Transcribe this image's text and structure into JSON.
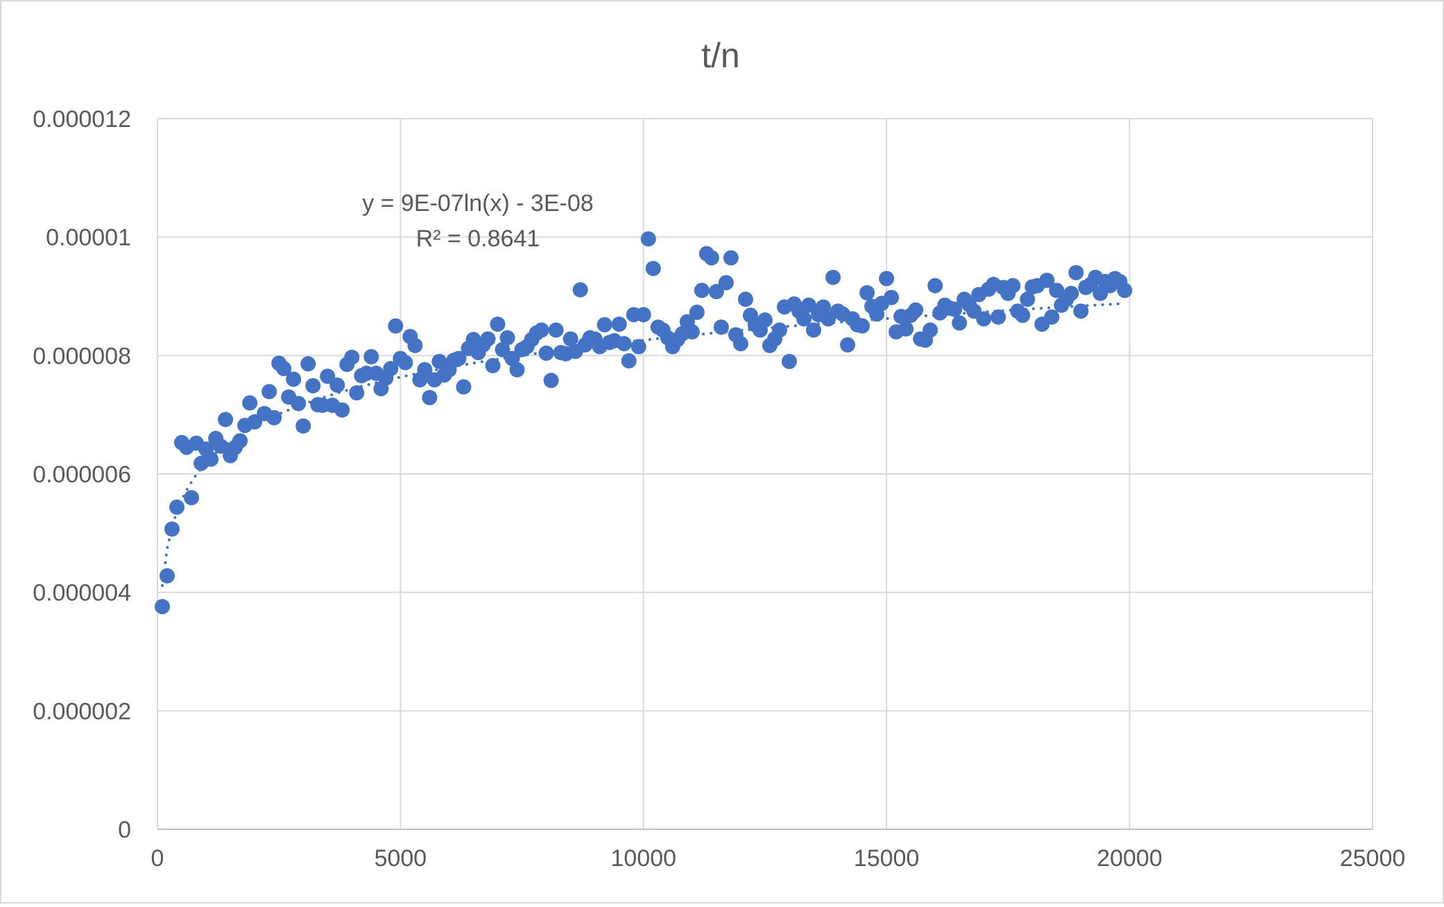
{
  "chart_data": {
    "type": "scatter",
    "title": "t/n",
    "xlabel": "",
    "ylabel": "",
    "xlim": [
      0,
      25000
    ],
    "ylim": [
      0,
      1.2e-05
    ],
    "x_ticks": [
      "0",
      "5000",
      "10000",
      "15000",
      "20000",
      "25000"
    ],
    "y_ticks": [
      "0",
      "0.000002",
      "0.000004",
      "0.000006",
      "0.000008",
      "0.00001",
      "0.000012"
    ],
    "grid": true,
    "legend": "none",
    "marker_color": "#4472C4",
    "trendline": {
      "type": "logarithmic",
      "a": 9e-07,
      "b": -3e-08,
      "equation_label": "y = 9E-07ln(x) - 3E-08",
      "r2_label": "R² = 0.8641"
    },
    "series": [
      {
        "points": [
          [
            100,
            3.76e-06
          ],
          [
            200,
            4.28e-06
          ],
          [
            300,
            5.07e-06
          ],
          [
            400,
            5.44e-06
          ],
          [
            500,
            6.53e-06
          ],
          [
            600,
            6.45e-06
          ],
          [
            700,
            5.6e-06
          ],
          [
            800,
            6.52e-06
          ],
          [
            900,
            6.18e-06
          ],
          [
            1000,
            6.42e-06
          ],
          [
            1100,
            6.25e-06
          ],
          [
            1200,
            6.6e-06
          ],
          [
            1300,
            6.47e-06
          ],
          [
            1400,
            6.92e-06
          ],
          [
            1500,
            6.31e-06
          ],
          [
            1600,
            6.45e-06
          ],
          [
            1700,
            6.56e-06
          ],
          [
            1800,
            6.82e-06
          ],
          [
            1900,
            7.2e-06
          ],
          [
            2000,
            6.88e-06
          ],
          [
            2200,
            7.02e-06
          ],
          [
            2300,
            7.39e-06
          ],
          [
            2400,
            6.95e-06
          ],
          [
            2500,
            7.87e-06
          ],
          [
            2600,
            7.78e-06
          ],
          [
            2700,
            7.3e-06
          ],
          [
            2800,
            7.6e-06
          ],
          [
            2900,
            7.19e-06
          ],
          [
            3000,
            6.81e-06
          ],
          [
            3100,
            7.86e-06
          ],
          [
            3200,
            7.49e-06
          ],
          [
            3300,
            7.17e-06
          ],
          [
            3400,
            7.16e-06
          ],
          [
            3500,
            7.65e-06
          ],
          [
            3600,
            7.16e-06
          ],
          [
            3700,
            7.5e-06
          ],
          [
            3800,
            7.08e-06
          ],
          [
            3900,
            7.85e-06
          ],
          [
            4000,
            7.97e-06
          ],
          [
            4100,
            7.37e-06
          ],
          [
            4200,
            7.66e-06
          ],
          [
            4300,
            7.7e-06
          ],
          [
            4400,
            7.98e-06
          ],
          [
            4500,
            7.7e-06
          ],
          [
            4600,
            7.44e-06
          ],
          [
            4700,
            7.62e-06
          ],
          [
            4800,
            7.78e-06
          ],
          [
            4900,
            8.5e-06
          ],
          [
            5000,
            7.95e-06
          ],
          [
            5100,
            7.88e-06
          ],
          [
            5200,
            8.32e-06
          ],
          [
            5300,
            8.17e-06
          ],
          [
            5400,
            7.59e-06
          ],
          [
            5500,
            7.76e-06
          ],
          [
            5600,
            7.29e-06
          ],
          [
            5700,
            7.59e-06
          ],
          [
            5800,
            7.9e-06
          ],
          [
            5900,
            7.67e-06
          ],
          [
            6000,
            7.76e-06
          ],
          [
            6100,
            7.92e-06
          ],
          [
            6200,
            7.95e-06
          ],
          [
            6300,
            7.47e-06
          ],
          [
            6400,
            8.12e-06
          ],
          [
            6500,
            8.27e-06
          ],
          [
            6600,
            8.05e-06
          ],
          [
            6700,
            8.18e-06
          ],
          [
            6800,
            8.28e-06
          ],
          [
            6900,
            7.83e-06
          ],
          [
            7000,
            8.53e-06
          ],
          [
            7100,
            8.1e-06
          ],
          [
            7200,
            8.3e-06
          ],
          [
            7300,
            7.95e-06
          ],
          [
            7400,
            7.76e-06
          ],
          [
            7500,
            8.1e-06
          ],
          [
            7600,
            8.15e-06
          ],
          [
            7700,
            8.27e-06
          ],
          [
            7800,
            8.38e-06
          ],
          [
            7900,
            8.43e-06
          ],
          [
            8000,
            8.04e-06
          ],
          [
            8100,
            7.58e-06
          ],
          [
            8200,
            8.43e-06
          ],
          [
            8300,
            8.05e-06
          ],
          [
            8400,
            8.03e-06
          ],
          [
            8500,
            8.28e-06
          ],
          [
            8600,
            8.07e-06
          ],
          [
            8700,
            9.11e-06
          ],
          [
            8800,
            8.18e-06
          ],
          [
            8900,
            8.3e-06
          ],
          [
            9000,
            8.28e-06
          ],
          [
            9100,
            8.15e-06
          ],
          [
            9200,
            8.52e-06
          ],
          [
            9300,
            8.22e-06
          ],
          [
            9400,
            8.25e-06
          ],
          [
            9500,
            8.53e-06
          ],
          [
            9600,
            8.2e-06
          ],
          [
            9700,
            7.91e-06
          ],
          [
            9800,
            8.69e-06
          ],
          [
            9900,
            8.15e-06
          ],
          [
            10000,
            8.69e-06
          ],
          [
            10100,
            9.97e-06
          ],
          [
            10200,
            9.47e-06
          ],
          [
            10300,
            8.48e-06
          ],
          [
            10400,
            8.43e-06
          ],
          [
            10500,
            8.3e-06
          ],
          [
            10600,
            8.15e-06
          ],
          [
            10700,
            8.27e-06
          ],
          [
            10800,
            8.37e-06
          ],
          [
            10900,
            8.57e-06
          ],
          [
            11000,
            8.4e-06
          ],
          [
            11100,
            8.73e-06
          ],
          [
            11200,
            9.1e-06
          ],
          [
            11300,
            9.72e-06
          ],
          [
            11400,
            9.65e-06
          ],
          [
            11500,
            9.08e-06
          ],
          [
            11600,
            8.48e-06
          ],
          [
            11700,
            9.23e-06
          ],
          [
            11800,
            9.65e-06
          ],
          [
            11900,
            8.35e-06
          ],
          [
            12000,
            8.2e-06
          ],
          [
            12100,
            8.95e-06
          ],
          [
            12200,
            8.68e-06
          ],
          [
            12300,
            8.52e-06
          ],
          [
            12400,
            8.43e-06
          ],
          [
            12500,
            8.6e-06
          ],
          [
            12600,
            8.17e-06
          ],
          [
            12700,
            8.28e-06
          ],
          [
            12800,
            8.43e-06
          ],
          [
            12900,
            8.82e-06
          ],
          [
            13000,
            7.9e-06
          ],
          [
            13100,
            8.87e-06
          ],
          [
            13200,
            8.75e-06
          ],
          [
            13300,
            8.62e-06
          ],
          [
            13400,
            8.85e-06
          ],
          [
            13500,
            8.43e-06
          ],
          [
            13600,
            8.69e-06
          ],
          [
            13700,
            8.82e-06
          ],
          [
            13800,
            8.62e-06
          ],
          [
            13900,
            9.32e-06
          ],
          [
            14000,
            8.75e-06
          ],
          [
            14100,
            8.7e-06
          ],
          [
            14200,
            8.18e-06
          ],
          [
            14300,
            8.62e-06
          ],
          [
            14400,
            8.52e-06
          ],
          [
            14500,
            8.5e-06
          ],
          [
            14600,
            9.06e-06
          ],
          [
            14700,
            8.83e-06
          ],
          [
            14800,
            8.7e-06
          ],
          [
            14900,
            8.88e-06
          ],
          [
            15000,
            9.3e-06
          ],
          [
            15100,
            8.98e-06
          ],
          [
            15200,
            8.4e-06
          ],
          [
            15300,
            8.66e-06
          ],
          [
            15400,
            8.45e-06
          ],
          [
            15500,
            8.68e-06
          ],
          [
            15600,
            8.77e-06
          ],
          [
            15700,
            8.28e-06
          ],
          [
            15800,
            8.26e-06
          ],
          [
            15900,
            8.43e-06
          ],
          [
            16000,
            9.18e-06
          ],
          [
            16100,
            8.72e-06
          ],
          [
            16200,
            8.85e-06
          ],
          [
            16300,
            8.8e-06
          ],
          [
            16400,
            8.78e-06
          ],
          [
            16500,
            8.55e-06
          ],
          [
            16600,
            8.95e-06
          ],
          [
            16700,
            8.86e-06
          ],
          [
            16800,
            8.75e-06
          ],
          [
            16900,
            9.03e-06
          ],
          [
            17000,
            8.62e-06
          ],
          [
            17100,
            9.12e-06
          ],
          [
            17200,
            9.2e-06
          ],
          [
            17300,
            8.65e-06
          ],
          [
            17400,
            9.15e-06
          ],
          [
            17500,
            9.05e-06
          ],
          [
            17600,
            9.18e-06
          ],
          [
            17700,
            8.75e-06
          ],
          [
            17800,
            8.68e-06
          ],
          [
            17900,
            8.95e-06
          ],
          [
            18000,
            9.16e-06
          ],
          [
            18100,
            9.18e-06
          ],
          [
            18200,
            8.53e-06
          ],
          [
            18300,
            9.27e-06
          ],
          [
            18400,
            8.65e-06
          ],
          [
            18500,
            9.1e-06
          ],
          [
            18600,
            8.85e-06
          ],
          [
            18700,
            8.95e-06
          ],
          [
            18800,
            9.05e-06
          ],
          [
            18900,
            9.4e-06
          ],
          [
            19000,
            8.75e-06
          ],
          [
            19100,
            9.15e-06
          ],
          [
            19200,
            9.2e-06
          ],
          [
            19300,
            9.32e-06
          ],
          [
            19400,
            9.05e-06
          ],
          [
            19500,
            9.25e-06
          ],
          [
            19600,
            9.18e-06
          ],
          [
            19700,
            9.3e-06
          ],
          [
            19800,
            9.25e-06
          ],
          [
            19900,
            9.1e-06
          ]
        ]
      }
    ]
  }
}
